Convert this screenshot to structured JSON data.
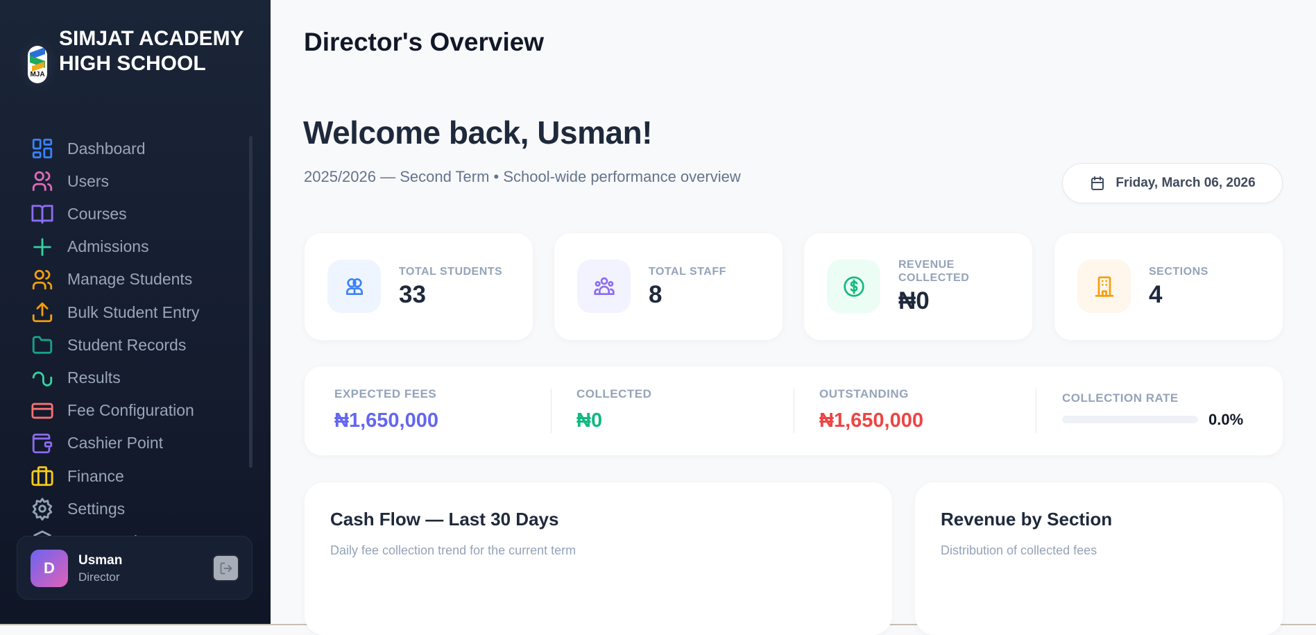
{
  "sidebar": {
    "logo_text": "MJA",
    "school_name": "SIMJAT ACADEMY HIGH SCHOOL",
    "items": [
      {
        "label": "Dashboard",
        "icon": "dashboard-icon",
        "color": "#3b82f6"
      },
      {
        "label": "Users",
        "icon": "users-icon",
        "color": "#e06bb8"
      },
      {
        "label": "Courses",
        "icon": "book-icon",
        "color": "#8b6cf0"
      },
      {
        "label": "Admissions",
        "icon": "plus-icon",
        "color": "#34d3a0"
      },
      {
        "label": "Manage Students",
        "icon": "users-icon",
        "color": "#f59e0b"
      },
      {
        "label": "Bulk Student Entry",
        "icon": "upload-icon",
        "color": "#f59e0b"
      },
      {
        "label": "Student Records",
        "icon": "folder-icon",
        "color": "#14a38a"
      },
      {
        "label": "Results",
        "icon": "results-icon",
        "color": "#34d3a0"
      },
      {
        "label": "Fee Configuration",
        "icon": "credit-card-icon",
        "color": "#f87171"
      },
      {
        "label": "Cashier Point",
        "icon": "wallet-icon",
        "color": "#8b6cf0"
      },
      {
        "label": "Finance",
        "icon": "briefcase-icon",
        "color": "#facc15"
      },
      {
        "label": "Settings",
        "icon": "gear-icon",
        "color": "#94a3b8"
      },
      {
        "label": "Password Reset",
        "icon": "shield-icon",
        "color": "#94a3b8"
      }
    ],
    "user": {
      "initial": "D",
      "name": "Usman",
      "role": "Director"
    }
  },
  "header": {
    "title": "Director's Overview"
  },
  "welcome": {
    "title": "Welcome back, Usman!",
    "subtitle": "2025/2026 — Second Term • School-wide performance overview",
    "date": "Friday, March 06, 2026"
  },
  "stats": [
    {
      "label": "Total Students",
      "value": "33",
      "icon": "students-icon",
      "color": "#3b82f6",
      "bg": "#eff5ff"
    },
    {
      "label": "Total Staff",
      "value": "8",
      "icon": "staff-icon",
      "color": "#8b6cf0",
      "bg": "#f3f2ff"
    },
    {
      "label": "Revenue Collected",
      "value": "₦0",
      "icon": "dollar-icon",
      "color": "#10b981",
      "bg": "#ecfdf5"
    },
    {
      "label": "Sections",
      "value": "4",
      "icon": "building-icon",
      "color": "#f59e0b",
      "bg": "#fff6ec"
    }
  ],
  "finance": {
    "expected": {
      "label": "EXPECTED FEES",
      "value": "₦1,650,000",
      "color": "#6366f1"
    },
    "collected": {
      "label": "COLLECTED",
      "value": "₦0",
      "color": "#10b981"
    },
    "outstanding": {
      "label": "OUTSTANDING",
      "value": "₦1,650,000",
      "color": "#ef4444"
    },
    "rate": {
      "label": "COLLECTION RATE",
      "value": "0.0%",
      "percent": 0
    }
  },
  "charts": {
    "cashflow": {
      "title": "Cash Flow — Last 30 Days",
      "subtitle": "Daily fee collection trend for the current term"
    },
    "revenue": {
      "title": "Revenue by Section",
      "subtitle": "Distribution of collected fees"
    }
  }
}
